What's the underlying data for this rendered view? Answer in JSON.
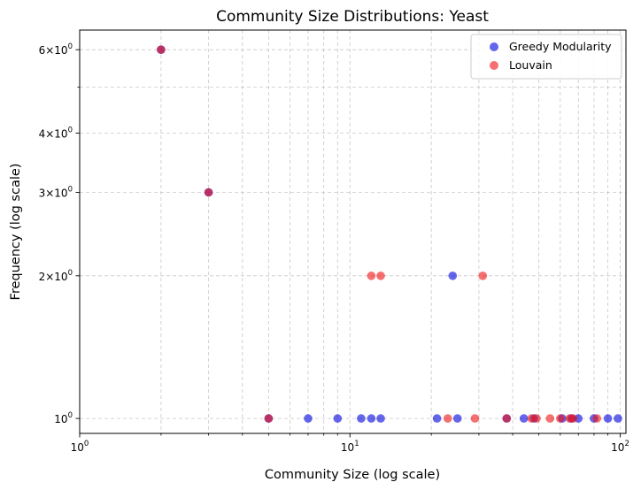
{
  "chart_data": {
    "type": "scatter",
    "title": "Community Size Distributions: Yeast",
    "xlabel": "Community Size (log scale)",
    "ylabel": "Frequency (log scale)",
    "xscale": "log",
    "yscale": "log",
    "xlim": [
      1,
      105
    ],
    "ylim": [
      0.93,
      6.6
    ],
    "grid": true,
    "grid_minor": true,
    "legend_position": "top-right",
    "x_ticks": [
      {
        "value": 1,
        "base": "10",
        "exp": "0"
      },
      {
        "value": 10,
        "base": "10",
        "exp": "1"
      },
      {
        "value": 100,
        "base": "10",
        "exp": "2"
      }
    ],
    "y_ticks": [
      {
        "value": 1,
        "coef": "10",
        "exp": "0",
        "mult": ""
      },
      {
        "value": 2,
        "coef": "2",
        "exp": "0",
        "mult": "×10"
      },
      {
        "value": 3,
        "coef": "3",
        "exp": "0",
        "mult": "×10"
      },
      {
        "value": 4,
        "coef": "4",
        "exp": "0",
        "mult": "×10"
      },
      {
        "value": 6,
        "coef": "6",
        "exp": "0",
        "mult": "×10"
      }
    ],
    "y_minor_grid": [
      5
    ],
    "series": [
      {
        "name": "Greedy Modularity",
        "color": "#0000dd",
        "points": [
          [
            2,
            6
          ],
          [
            3,
            3
          ],
          [
            5,
            1
          ],
          [
            7,
            1
          ],
          [
            9,
            1
          ],
          [
            11,
            1
          ],
          [
            12,
            1
          ],
          [
            13,
            1
          ],
          [
            21,
            1
          ],
          [
            24,
            2
          ],
          [
            25,
            1
          ],
          [
            38,
            1
          ],
          [
            44,
            1
          ],
          [
            48,
            1
          ],
          [
            61,
            1
          ],
          [
            66,
            1
          ],
          [
            70,
            1
          ],
          [
            80,
            1
          ],
          [
            90,
            1
          ],
          [
            98,
            1
          ]
        ]
      },
      {
        "name": "Louvain",
        "color": "#ee1111",
        "points": [
          [
            2,
            6
          ],
          [
            3,
            3
          ],
          [
            5,
            1
          ],
          [
            12,
            2
          ],
          [
            13,
            2
          ],
          [
            23,
            1
          ],
          [
            29,
            1
          ],
          [
            31,
            2
          ],
          [
            38,
            1
          ],
          [
            47,
            1
          ],
          [
            49,
            1
          ],
          [
            55,
            1
          ],
          [
            60,
            1
          ],
          [
            65,
            1
          ],
          [
            67,
            1
          ],
          [
            82,
            1
          ]
        ]
      }
    ]
  }
}
